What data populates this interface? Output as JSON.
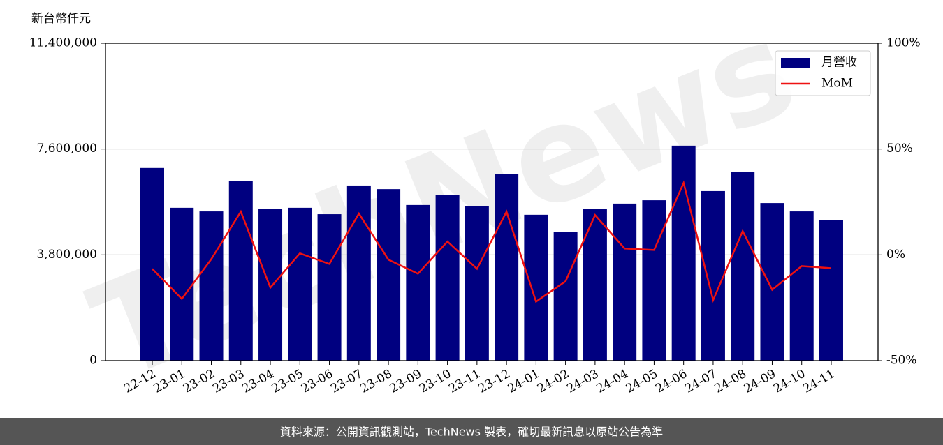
{
  "chart_data": {
    "type": "bar_line",
    "y_label": "新台幣仟元",
    "watermark": "TechNews",
    "footer": "資料來源：公開資訊觀測站，TechNews 製表，確切最新訊息以原站公告為準",
    "categories": [
      "22-12",
      "23-01",
      "23-02",
      "23-03",
      "23-04",
      "23-05",
      "23-06",
      "23-07",
      "23-08",
      "23-09",
      "23-10",
      "23-11",
      "23-12",
      "24-01",
      "24-02",
      "24-03",
      "24-04",
      "24-05",
      "24-06",
      "24-07",
      "24-08",
      "24-09",
      "24-10",
      "24-11"
    ],
    "series": [
      {
        "name": "月營收",
        "color": "#000080",
        "type": "bar",
        "values": [
          6920000,
          5490000,
          5360000,
          6460000,
          5460000,
          5490000,
          5260000,
          6290000,
          6160000,
          5590000,
          5960000,
          5560000,
          6710000,
          5240000,
          4610000,
          5460000,
          5640000,
          5760000,
          7720000,
          6090000,
          6790000,
          5660000,
          5360000,
          5040000
        ]
      },
      {
        "name": "MoM",
        "color": "#ee1111",
        "type": "line",
        "axis": "y2",
        "values": [
          -6.6,
          -20.8,
          -2.0,
          20.4,
          -15.5,
          0.7,
          -4.3,
          19.5,
          -2.3,
          -8.9,
          6.3,
          -6.6,
          20.4,
          -22.1,
          -12.5,
          18.8,
          3.0,
          2.3,
          34.0,
          -21.4,
          11.2,
          -16.5,
          -5.3,
          -6.3
        ]
      }
    ],
    "ylim": [
      0,
      11400000
    ],
    "yticks": [
      0,
      {
        "value": 3800000,
        "label": "3,800,000"
      },
      {
        "value": 7600000,
        "label": "7,600,000"
      },
      {
        "value": 11400000,
        "label": "11,400,000"
      }
    ],
    "y2lim": [
      -50,
      100
    ],
    "y2ticks": [
      {
        "value": -50,
        "label": "-50%"
      },
      {
        "value": 0,
        "label": "0%"
      },
      {
        "value": 50,
        "label": "50%"
      },
      {
        "value": 100,
        "label": "100%"
      }
    ],
    "grid": true,
    "legend": "upper right"
  }
}
